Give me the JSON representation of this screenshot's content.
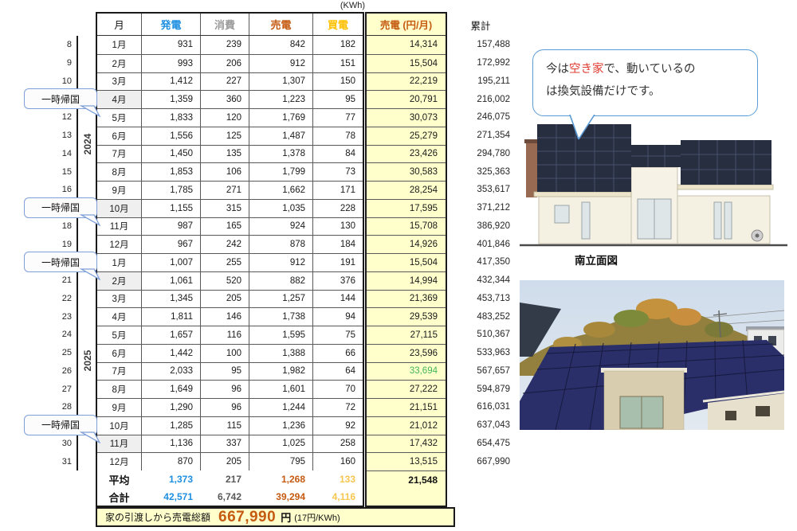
{
  "units_label": "(KWh)",
  "colors": {
    "blue": "#1E8FE0",
    "gray": "#9A9A9A",
    "gray_dark": "#595959",
    "orange": "#C55A11",
    "gold": "#FFC000",
    "gold_light": "#F6C64F",
    "green": "#43B45C",
    "yellow": "#FFFFCC",
    "red": "#E03C31",
    "bubble_border": "#5B9BD5",
    "callout_border": "#7F9FD8",
    "shaded": "#EFEFEF"
  },
  "table": {
    "headers": {
      "month": "月",
      "gen": "発電",
      "cons": "消費",
      "sell": "売電",
      "buy": "買電",
      "yen": "売電 (円/月)",
      "cum": "累計"
    },
    "rows": [
      {
        "num": "8",
        "month": "1月",
        "gen": "931",
        "cons": "239",
        "sell": "842",
        "buy": "182",
        "yen": "14,314",
        "cum": "157,488",
        "shaded": false,
        "green": false
      },
      {
        "num": "9",
        "month": "2月",
        "gen": "993",
        "cons": "206",
        "sell": "912",
        "buy": "151",
        "yen": "15,504",
        "cum": "172,992",
        "shaded": false,
        "green": false
      },
      {
        "num": "10",
        "month": "3月",
        "gen": "1,412",
        "cons": "227",
        "sell": "1,307",
        "buy": "150",
        "yen": "22,219",
        "cum": "195,211",
        "shaded": false,
        "green": false
      },
      {
        "num": "",
        "month": "4月",
        "gen": "1,359",
        "cons": "360",
        "sell": "1,223",
        "buy": "95",
        "yen": "20,791",
        "cum": "216,002",
        "shaded": true,
        "green": false
      },
      {
        "num": "12",
        "month": "5月",
        "gen": "1,833",
        "cons": "120",
        "sell": "1,769",
        "buy": "77",
        "yen": "30,073",
        "cum": "246,075",
        "shaded": false,
        "green": false
      },
      {
        "num": "13",
        "month": "6月",
        "gen": "1,556",
        "cons": "125",
        "sell": "1,487",
        "buy": "78",
        "yen": "25,279",
        "cum": "271,354",
        "shaded": false,
        "green": false
      },
      {
        "num": "14",
        "month": "7月",
        "gen": "1,450",
        "cons": "135",
        "sell": "1,378",
        "buy": "84",
        "yen": "23,426",
        "cum": "294,780",
        "shaded": false,
        "green": false
      },
      {
        "num": "15",
        "month": "8月",
        "gen": "1,853",
        "cons": "106",
        "sell": "1,799",
        "buy": "73",
        "yen": "30,583",
        "cum": "325,363",
        "shaded": false,
        "green": false
      },
      {
        "num": "16",
        "month": "9月",
        "gen": "1,785",
        "cons": "271",
        "sell": "1,662",
        "buy": "171",
        "yen": "28,254",
        "cum": "353,617",
        "shaded": false,
        "green": false
      },
      {
        "num": "",
        "month": "10月",
        "gen": "1,155",
        "cons": "315",
        "sell": "1,035",
        "buy": "228",
        "yen": "17,595",
        "cum": "371,212",
        "shaded": true,
        "green": false
      },
      {
        "num": "18",
        "month": "11月",
        "gen": "987",
        "cons": "165",
        "sell": "924",
        "buy": "130",
        "yen": "15,708",
        "cum": "386,920",
        "shaded": false,
        "green": false
      },
      {
        "num": "19",
        "month": "12月",
        "gen": "967",
        "cons": "242",
        "sell": "878",
        "buy": "184",
        "yen": "14,926",
        "cum": "401,846",
        "shaded": false,
        "green": false
      },
      {
        "num": "",
        "month": "1月",
        "gen": "1,007",
        "cons": "255",
        "sell": "912",
        "buy": "191",
        "yen": "15,504",
        "cum": "417,350",
        "shaded": false,
        "green": false
      },
      {
        "num": "21",
        "month": "2月",
        "gen": "1,061",
        "cons": "520",
        "sell": "882",
        "buy": "376",
        "yen": "14,994",
        "cum": "432,344",
        "shaded": true,
        "green": false
      },
      {
        "num": "22",
        "month": "3月",
        "gen": "1,345",
        "cons": "205",
        "sell": "1,257",
        "buy": "144",
        "yen": "21,369",
        "cum": "453,713",
        "shaded": false,
        "green": false
      },
      {
        "num": "23",
        "month": "4月",
        "gen": "1,811",
        "cons": "146",
        "sell": "1,738",
        "buy": "94",
        "yen": "29,539",
        "cum": "483,252",
        "shaded": false,
        "green": false
      },
      {
        "num": "24",
        "month": "5月",
        "gen": "1,657",
        "cons": "116",
        "sell": "1,595",
        "buy": "75",
        "yen": "27,115",
        "cum": "510,367",
        "shaded": false,
        "green": false
      },
      {
        "num": "25",
        "month": "6月",
        "gen": "1,442",
        "cons": "100",
        "sell": "1,388",
        "buy": "66",
        "yen": "23,596",
        "cum": "533,963",
        "shaded": false,
        "green": false
      },
      {
        "num": "26",
        "month": "7月",
        "gen": "2,033",
        "cons": "95",
        "sell": "1,982",
        "buy": "64",
        "yen": "33,694",
        "cum": "567,657",
        "shaded": false,
        "green": true
      },
      {
        "num": "27",
        "month": "8月",
        "gen": "1,649",
        "cons": "96",
        "sell": "1,601",
        "buy": "70",
        "yen": "27,222",
        "cum": "594,879",
        "shaded": false,
        "green": false
      },
      {
        "num": "28",
        "month": "9月",
        "gen": "1,290",
        "cons": "96",
        "sell": "1,244",
        "buy": "72",
        "yen": "21,151",
        "cum": "616,031",
        "shaded": false,
        "green": false
      },
      {
        "num": "",
        "month": "10月",
        "gen": "1,285",
        "cons": "115",
        "sell": "1,236",
        "buy": "92",
        "yen": "21,012",
        "cum": "637,043",
        "shaded": false,
        "green": false
      },
      {
        "num": "30",
        "month": "11月",
        "gen": "1,136",
        "cons": "337",
        "sell": "1,025",
        "buy": "258",
        "yen": "17,432",
        "cum": "654,475",
        "shaded": true,
        "green": false
      },
      {
        "num": "31",
        "month": "12月",
        "gen": "870",
        "cons": "205",
        "sell": "795",
        "buy": "160",
        "yen": "13,515",
        "cum": "667,990",
        "shaded": false,
        "green": false
      }
    ],
    "avg": {
      "label": "平均",
      "gen": "1,373",
      "cons": "217",
      "sell": "1,268",
      "buy": "133",
      "yen": "21,548"
    },
    "total": {
      "label": "合計",
      "gen": "42,571",
      "cons": "6,742",
      "sell": "39,294",
      "buy": "4,116"
    },
    "footer": {
      "text": "家の引渡しから売電総額",
      "amount": "667,990",
      "unit": "円",
      "rate": "(17円/KWh)"
    }
  },
  "years": [
    {
      "label": "2024"
    },
    {
      "label": "2025"
    }
  ],
  "callouts": [
    {
      "label": "一時帰国",
      "target_row": 3
    },
    {
      "label": "一時帰国",
      "target_row": 9
    },
    {
      "label": "一時帰国",
      "target_row": 12
    },
    {
      "label": "一時帰国",
      "target_row": 21
    }
  ],
  "bubble": {
    "pre": "今は",
    "red": "空き家",
    "post": "で、動いているの",
    "line2": "は換気設備だけです。"
  },
  "captions": {
    "elevation": "南立面図"
  }
}
